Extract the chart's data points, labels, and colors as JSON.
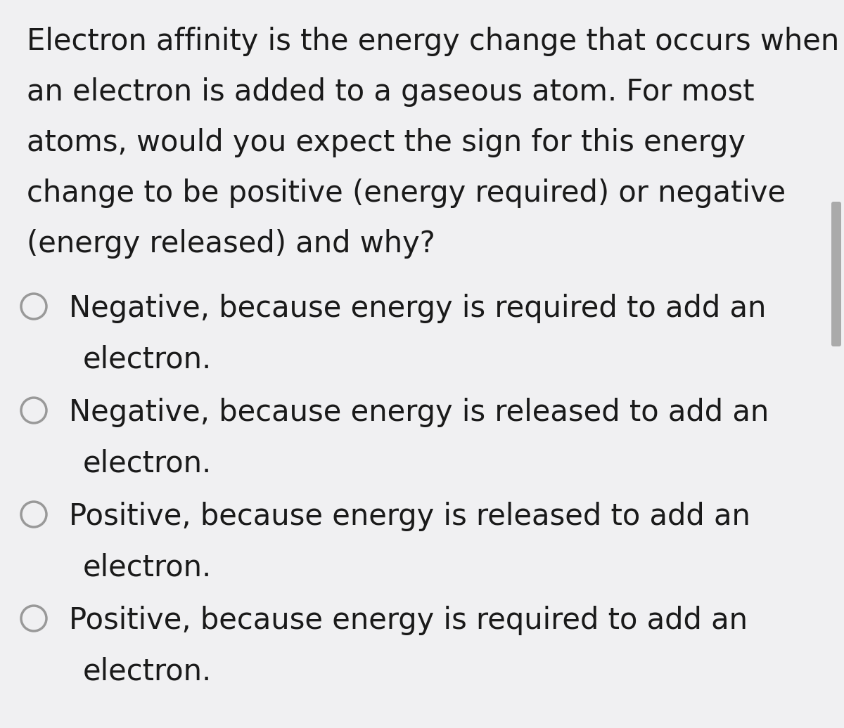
{
  "background_color": "#f0f0f2",
  "scrollbar_thumb_color": "#aaaaaa",
  "text_color": "#1a1a1a",
  "circle_color": "#999999",
  "question_text": [
    "Electron affinity is the energy change that occurs when",
    "an electron is added to a gaseous atom. For most",
    "atoms, would you expect the sign for this energy",
    "change to be positive (energy required) or negative",
    "(energy released) and why?"
  ],
  "options": [
    [
      "Negative, because energy is required to add an",
      "electron."
    ],
    [
      "Negative, because energy is released to add an",
      "electron."
    ],
    [
      "Positive, because energy is released to add an",
      "electron."
    ],
    [
      "Positive, because energy is required to add an",
      "electron."
    ]
  ],
  "question_fontsize": 30,
  "option_fontsize": 30,
  "fig_width": 12.0,
  "fig_height": 10.36
}
